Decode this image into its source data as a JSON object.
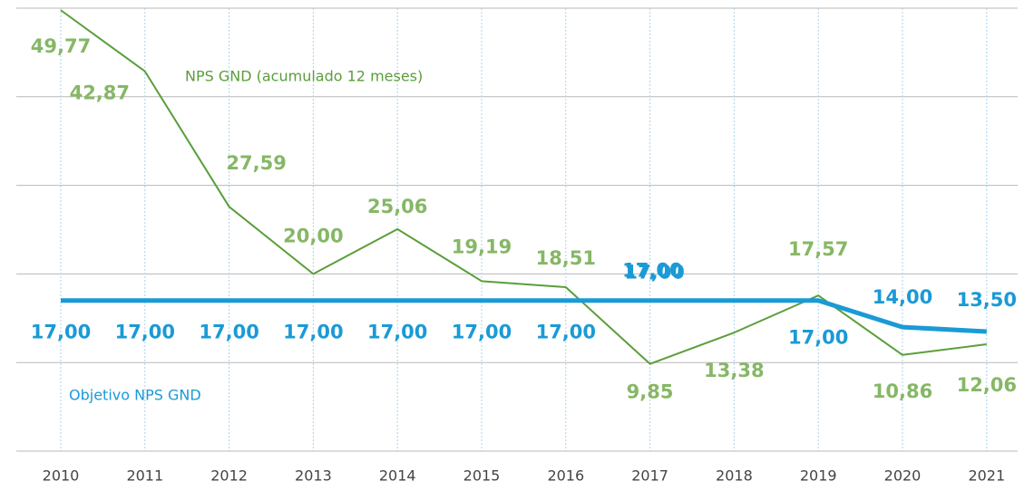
{
  "chart_data": {
    "type": "line",
    "categories": [
      "2010",
      "2011",
      "2012",
      "2013",
      "2014",
      "2015",
      "2016",
      "2017",
      "2018",
      "2019",
      "2020",
      "2021"
    ],
    "series": [
      {
        "name": "NPS GND (acumulado 12 meses)",
        "color": "#5a9e3a",
        "label_color": "#86b766",
        "values": [
          49.77,
          42.87,
          27.59,
          20.0,
          25.06,
          19.19,
          18.51,
          9.85,
          13.38,
          17.57,
          10.86,
          12.06
        ],
        "value_labels": [
          "49,77",
          "42,87",
          "27,59",
          "20,00",
          "25,06",
          "19,19",
          "18,51",
          "9,85",
          "13,38",
          "17,57",
          "10,86",
          "12,06"
        ]
      },
      {
        "name": "Objetivo NPS GND",
        "color": "#1a9ad6",
        "label_color": "#1a9ad6",
        "values": [
          17,
          17,
          17,
          17,
          17,
          17,
          17,
          17,
          17,
          17,
          14,
          13.5
        ],
        "value_labels": [
          "17,00",
          "17,00",
          "17,00",
          "17,00",
          "17,00",
          "17,00",
          "17,00",
          "17,00",
          "17,00",
          "17,00",
          "14,00",
          "13,50"
        ]
      }
    ],
    "ylim": [
      0,
      50
    ],
    "yticks": [
      0,
      10,
      20,
      30,
      40,
      50
    ],
    "grid": true
  }
}
